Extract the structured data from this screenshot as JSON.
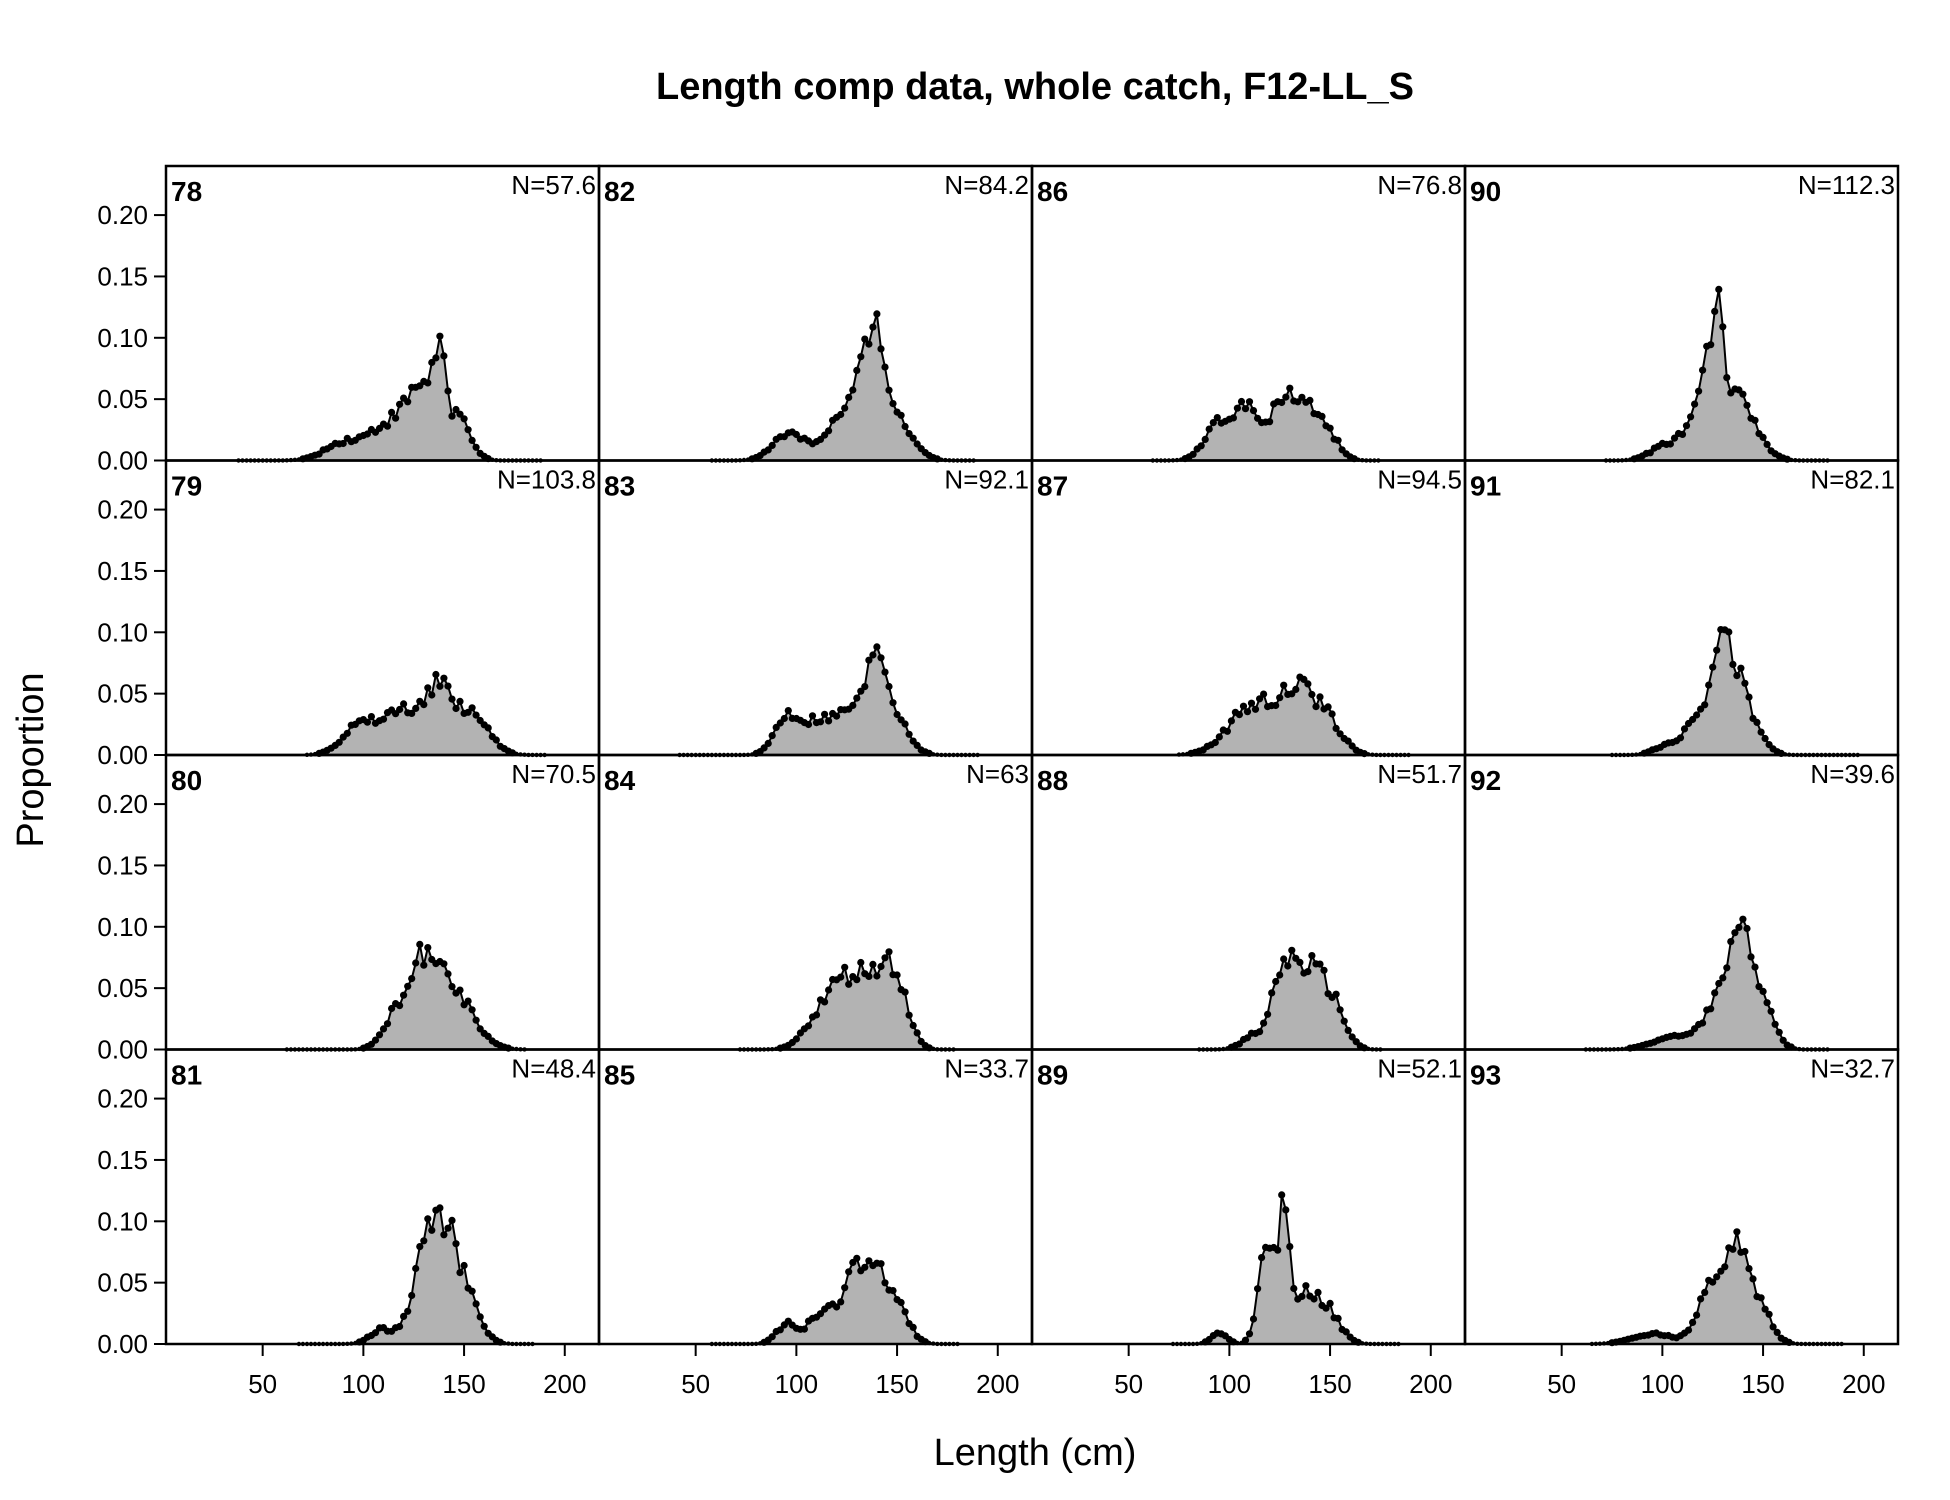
{
  "chart_data": {
    "type": "area",
    "title": "Length comp data, whole catch, F12-LL_S",
    "xlabel": "Length (cm)",
    "ylabel": "Proportion",
    "xlim": [
      2,
      217
    ],
    "ylim": [
      0,
      0.24
    ],
    "x_ticks": [
      "50",
      "100",
      "150",
      "200"
    ],
    "y_ticks": [
      "0.00",
      "0.05",
      "0.10",
      "0.15",
      "0.20"
    ],
    "grid": false,
    "layout": "4 rows x 4 columns, filled column-wise",
    "fill_color": "#b3b3b3",
    "line_color": "#000000",
    "bin_width_cm": 2,
    "panels": [
      {
        "label": "78",
        "n": "N=57.6",
        "range": [
          38,
          188
        ],
        "peaks": [
          [
            92,
            0.016,
            10
          ],
          [
            110,
            0.022,
            7
          ],
          [
            122,
            0.035,
            6
          ],
          [
            131,
            0.048,
            5
          ],
          [
            138,
            0.065,
            3
          ],
          [
            147,
            0.036,
            6
          ]
        ]
      },
      {
        "label": "79",
        "n": "N=103.8",
        "range": [
          72,
          190
        ],
        "peaks": [
          [
            97,
            0.022,
            8
          ],
          [
            118,
            0.035,
            10
          ],
          [
            138,
            0.052,
            7
          ],
          [
            155,
            0.03,
            8
          ]
        ]
      },
      {
        "label": "80",
        "n": "N=70.5",
        "range": [
          62,
          180
        ],
        "peaks": [
          [
            115,
            0.025,
            6
          ],
          [
            130,
            0.065,
            7
          ],
          [
            145,
            0.045,
            10
          ]
        ]
      },
      {
        "label": "81",
        "n": "N=48.4",
        "range": [
          68,
          185
        ],
        "peaks": [
          [
            110,
            0.012,
            6
          ],
          [
            130,
            0.068,
            6
          ],
          [
            140,
            0.07,
            6
          ],
          [
            150,
            0.04,
            7
          ]
        ]
      },
      {
        "label": "82",
        "n": "N=84.2",
        "range": [
          58,
          188
        ],
        "peaks": [
          [
            97,
            0.023,
            8
          ],
          [
            118,
            0.022,
            6
          ],
          [
            132,
            0.055,
            7
          ],
          [
            140,
            0.062,
            5
          ],
          [
            150,
            0.03,
            8
          ]
        ]
      },
      {
        "label": "83",
        "n": "N=92.1",
        "range": [
          42,
          190
        ],
        "peaks": [
          [
            95,
            0.028,
            6
          ],
          [
            112,
            0.028,
            9
          ],
          [
            130,
            0.035,
            7
          ],
          [
            140,
            0.06,
            4
          ],
          [
            148,
            0.035,
            7
          ]
        ]
      },
      {
        "label": "84",
        "n": "N=63",
        "range": [
          72,
          178
        ],
        "peaks": [
          [
            112,
            0.025,
            8
          ],
          [
            125,
            0.045,
            8
          ],
          [
            140,
            0.05,
            8
          ],
          [
            150,
            0.04,
            6
          ]
        ]
      },
      {
        "label": "85",
        "n": "N=33.7",
        "range": [
          58,
          180
        ],
        "peaks": [
          [
            95,
            0.016,
            5
          ],
          [
            112,
            0.025,
            6
          ],
          [
            128,
            0.055,
            6
          ],
          [
            140,
            0.045,
            6
          ],
          [
            150,
            0.028,
            6
          ]
        ]
      },
      {
        "label": "86",
        "n": "N=76.8",
        "range": [
          62,
          175
        ],
        "peaks": [
          [
            95,
            0.03,
            7
          ],
          [
            110,
            0.04,
            7
          ],
          [
            125,
            0.03,
            5
          ],
          [
            135,
            0.043,
            7
          ],
          [
            148,
            0.022,
            6
          ]
        ]
      },
      {
        "label": "87",
        "n": "N=94.5",
        "range": [
          75,
          190
        ],
        "peaks": [
          [
            112,
            0.04,
            12
          ],
          [
            135,
            0.048,
            9
          ],
          [
            150,
            0.02,
            7
          ]
        ]
      },
      {
        "label": "88",
        "n": "N=51.7",
        "range": [
          85,
          175
        ],
        "peaks": [
          [
            112,
            0.01,
            6
          ],
          [
            127,
            0.06,
            6
          ],
          [
            140,
            0.058,
            7
          ],
          [
            152,
            0.03,
            6
          ]
        ]
      },
      {
        "label": "89",
        "n": "N=52.1",
        "range": [
          72,
          185
        ],
        "peaks": [
          [
            95,
            0.008,
            4
          ],
          [
            118,
            0.07,
            4
          ],
          [
            127,
            0.095,
            3
          ],
          [
            138,
            0.04,
            7
          ],
          [
            150,
            0.02,
            6
          ]
        ]
      },
      {
        "label": "90",
        "n": "N=112.3",
        "range": [
          72,
          182
        ],
        "peaks": [
          [
            100,
            0.01,
            7
          ],
          [
            115,
            0.025,
            7
          ],
          [
            122,
            0.06,
            4
          ],
          [
            128,
            0.088,
            3
          ],
          [
            136,
            0.04,
            6
          ],
          [
            145,
            0.02,
            7
          ]
        ]
      },
      {
        "label": "91",
        "n": "N=82.1",
        "range": [
          75,
          198
        ],
        "peaks": [
          [
            102,
            0.008,
            6
          ],
          [
            118,
            0.035,
            6
          ],
          [
            128,
            0.075,
            4
          ],
          [
            136,
            0.06,
            5
          ],
          [
            145,
            0.02,
            6
          ]
        ]
      },
      {
        "label": "92",
        "n": "N=39.6",
        "range": [
          62,
          182
        ],
        "peaks": [
          [
            105,
            0.01,
            10
          ],
          [
            130,
            0.045,
            8
          ],
          [
            140,
            0.065,
            6
          ],
          [
            150,
            0.03,
            6
          ]
        ]
      },
      {
        "label": "93",
        "n": "N=32.7",
        "range": [
          65,
          190
        ],
        "peaks": [
          [
            95,
            0.008,
            10
          ],
          [
            125,
            0.05,
            7
          ],
          [
            138,
            0.068,
            5
          ],
          [
            148,
            0.03,
            6
          ]
        ]
      }
    ]
  }
}
